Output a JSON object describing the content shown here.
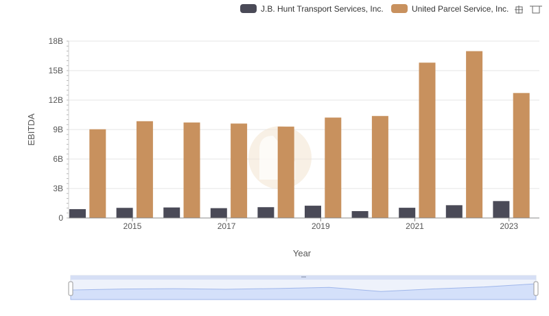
{
  "chart_data": {
    "type": "bar",
    "xlabel": "Year",
    "ylabel": "EBITDA",
    "categories": [
      "2014",
      "2015",
      "2016",
      "2017",
      "2018",
      "2019",
      "2020",
      "2021",
      "2022",
      "2023"
    ],
    "x_tick_labels": [
      "2015",
      "2017",
      "2019",
      "2021",
      "2023"
    ],
    "y_tick_labels": [
      "0",
      "3B",
      "6B",
      "9B",
      "12B",
      "15B",
      "18B"
    ],
    "ylim": [
      0,
      18000000000
    ],
    "y_ticks": [
      0,
      3000000000,
      6000000000,
      9000000000,
      12000000000,
      15000000000,
      18000000000
    ],
    "legend_position": "top-right",
    "grid": true,
    "series": [
      {
        "name": "J.B. Hunt Transport Services, Inc.",
        "color": "#4a4a57",
        "values": [
          900000000,
          1030000000,
          1070000000,
          1000000000,
          1100000000,
          1250000000,
          700000000,
          1040000000,
          1300000000,
          1720000000
        ]
      },
      {
        "name": "United Parcel Service, Inc.",
        "color": "#c8915e",
        "values": [
          9030000000,
          9850000000,
          9720000000,
          9610000000,
          9300000000,
          10220000000,
          10380000000,
          15810000000,
          16980000000,
          12720000000
        ]
      }
    ]
  },
  "navigator": {
    "series_values": [
      900000000,
      1030000000,
      1070000000,
      1000000000,
      1100000000,
      1250000000,
      700000000,
      1040000000,
      1300000000,
      1720000000
    ]
  }
}
